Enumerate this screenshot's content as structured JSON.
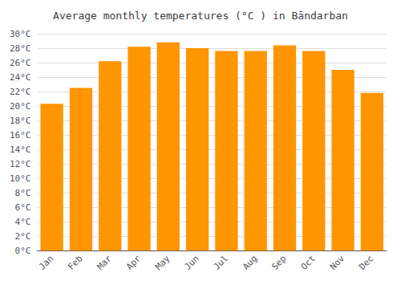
{
  "chart_data": {
    "type": "bar",
    "title": "Average monthly temperatures (°C ) in Bāndarban",
    "categories": [
      "Jan",
      "Feb",
      "Mar",
      "Apr",
      "May",
      "Jun",
      "Jul",
      "Aug",
      "Sep",
      "Oct",
      "Nov",
      "Dec"
    ],
    "values": [
      20.3,
      22.5,
      26.2,
      28.2,
      28.8,
      28.0,
      27.6,
      27.6,
      28.4,
      27.6,
      25.0,
      21.8
    ],
    "color": "#FF9500",
    "ylim": [
      0,
      30
    ],
    "yticks": [
      {
        "value": 0,
        "label": "0°C"
      },
      {
        "value": 2,
        "label": "2°C"
      },
      {
        "value": 4,
        "label": "4°C"
      },
      {
        "value": 6,
        "label": "6°C"
      },
      {
        "value": 8,
        "label": "8°C"
      },
      {
        "value": 10,
        "label": "10°C"
      },
      {
        "value": 12,
        "label": "12°C"
      },
      {
        "value": 14,
        "label": "14°C"
      },
      {
        "value": 16,
        "label": "16°C"
      },
      {
        "value": 18,
        "label": "18°C"
      },
      {
        "value": 20,
        "label": "20°C"
      },
      {
        "value": 22,
        "label": "22°C"
      },
      {
        "value": 24,
        "label": "24°C"
      },
      {
        "value": 26,
        "label": "26°C"
      },
      {
        "value": 28,
        "label": "28°C"
      },
      {
        "value": 30,
        "label": "30°C"
      }
    ],
    "grid": true
  }
}
